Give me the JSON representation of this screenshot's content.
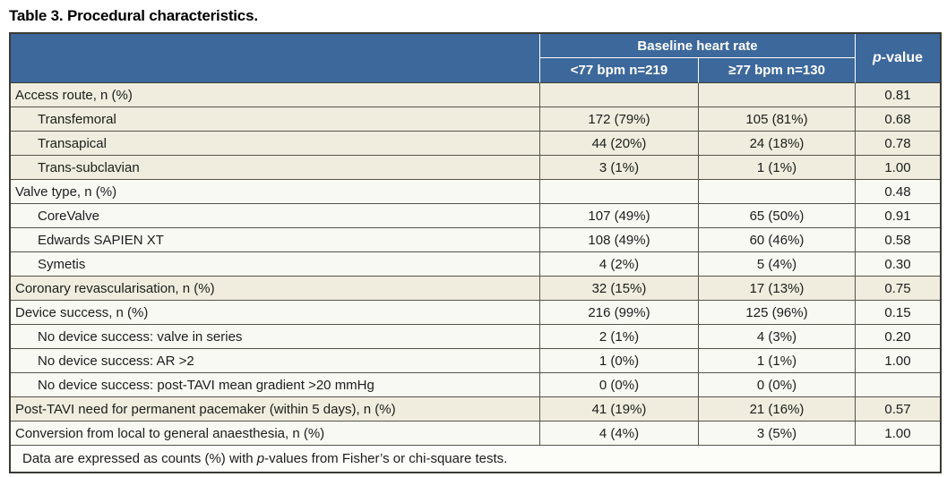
{
  "title": "Table 3. Procedural characteristics.",
  "table": {
    "header": {
      "group_label": "Baseline heart rate",
      "col1": "<77 bpm n=219",
      "col2": "≥77 bpm n=130",
      "pvalue_italic": "p",
      "pvalue_rest": "-value"
    },
    "rows": [
      {
        "label": "Access route, n (%)",
        "indent": false,
        "col1": "",
        "col2": "",
        "p": "0.81",
        "shade": "beige"
      },
      {
        "label": "Transfemoral",
        "indent": true,
        "col1": "172 (79%)",
        "col2": "105 (81%)",
        "p": "0.68",
        "shade": "beige"
      },
      {
        "label": "Transapical",
        "indent": true,
        "col1": "44 (20%)",
        "col2": "24 (18%)",
        "p": "0.78",
        "shade": "beige"
      },
      {
        "label": "Trans-subclavian",
        "indent": true,
        "col1": "3 (1%)",
        "col2": "1 (1%)",
        "p": "1.00",
        "shade": "beige"
      },
      {
        "label": "Valve type, n (%)",
        "indent": false,
        "col1": "",
        "col2": "",
        "p": "0.48",
        "shade": "white"
      },
      {
        "label": "CoreValve",
        "indent": true,
        "col1": "107 (49%)",
        "col2": "65 (50%)",
        "p": "0.91",
        "shade": "white"
      },
      {
        "label": "Edwards SAPIEN XT",
        "indent": true,
        "col1": "108 (49%)",
        "col2": "60 (46%)",
        "p": "0.58",
        "shade": "white"
      },
      {
        "label": "Symetis",
        "indent": true,
        "col1": "4 (2%)",
        "col2": "5 (4%)",
        "p": "0.30",
        "shade": "white"
      },
      {
        "label": "Coronary revascularisation, n (%)",
        "indent": false,
        "col1": "32 (15%)",
        "col2": "17 (13%)",
        "p": "0.75",
        "shade": "beige"
      },
      {
        "label": "Device success, n (%)",
        "indent": false,
        "col1": "216 (99%)",
        "col2": "125 (96%)",
        "p": "0.15",
        "shade": "white"
      },
      {
        "label": "No device success: valve in series",
        "indent": true,
        "col1": "2 (1%)",
        "col2": "4 (3%)",
        "p": "0.20",
        "shade": "white"
      },
      {
        "label": "No device success: AR >2",
        "indent": true,
        "col1": "1 (0%)",
        "col2": "1 (1%)",
        "p": "1.00",
        "shade": "white"
      },
      {
        "label": "No device success: post-TAVI mean gradient >20 mmHg",
        "indent": true,
        "col1": "0 (0%)",
        "col2": "0 (0%)",
        "p": "",
        "shade": "white"
      },
      {
        "label": "Post-TAVI need for permanent pacemaker (within 5 days), n (%)",
        "indent": false,
        "col1": "41 (19%)",
        "col2": "21 (16%)",
        "p": "0.57",
        "shade": "beige"
      },
      {
        "label": "Conversion from local to general anaesthesia, n (%)",
        "indent": false,
        "col1": "4 (4%)",
        "col2": "3 (5%)",
        "p": "1.00",
        "shade": "white"
      }
    ],
    "footnote": {
      "pre": "Data are expressed as counts (%) with ",
      "italic": "p",
      "post": "-values from Fisher’s or chi-square tests."
    }
  },
  "colors": {
    "header_bg": "#3d689b",
    "row_beige": "#f0edde",
    "row_white": "#f9f9f3",
    "border_inner": "#55544a",
    "border_outer": "#3b3a33",
    "header_text": "#ffffff",
    "text": "#1c1c1c"
  }
}
